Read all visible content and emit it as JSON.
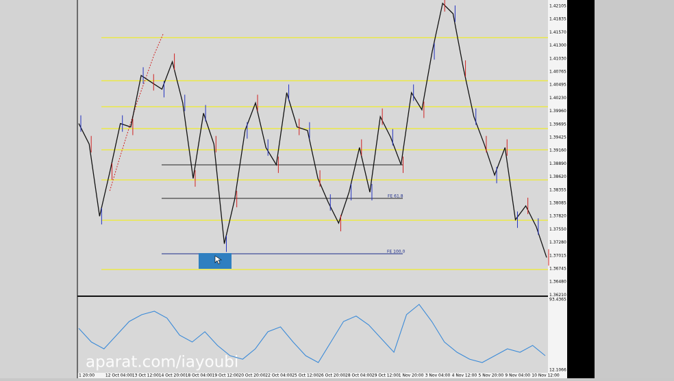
{
  "price_axis": {
    "labels": [
      "1.42105",
      "1.41835",
      "1.41570",
      "1.41300",
      "1.41030",
      "1.40765",
      "1.40495",
      "1.40230",
      "1.39960",
      "1.39695",
      "1.39425",
      "1.39160",
      "1.38890",
      "1.38620",
      "1.38355",
      "1.38085",
      "1.37820",
      "1.37550",
      "1.37280",
      "1.37015",
      "1.36745",
      "1.36480",
      "1.36210"
    ]
  },
  "time_axis": {
    "labels": [
      "1 20:00",
      "12 Oct 04:00",
      "13 Oct 12:00",
      "14 Oct 20:00",
      "18 Oct 04:00",
      "19 Oct 12:00",
      "20 Oct 20:00",
      "22 Oct 04:00",
      "25 Oct 12:00",
      "26 Oct 20:00",
      "28 Oct 04:00",
      "29 Oct 12:00",
      "1 Nov 20:00",
      "3 Nov 04:00",
      "4 Nov 12:00",
      "5 Nov 20:00",
      "9 Nov 04:00",
      "10 Nov 12:00"
    ]
  },
  "price_line": {
    "ylim": [
      1.3618,
      1.4223
    ],
    "values": [
      1.39701,
      1.39279,
      1.37803,
      1.38717,
      1.39701,
      1.39631,
      1.40685,
      1.40544,
      1.40404,
      1.40966,
      1.40123,
      1.38576,
      1.39912,
      1.39279,
      1.3724,
      1.38154,
      1.3956,
      1.40123,
      1.39209,
      1.38857,
      1.40333,
      1.39631,
      1.3956,
      1.38576,
      1.38084,
      1.37662,
      1.38295,
      1.39209,
      1.38295,
      1.39841,
      1.3942,
      1.38857,
      1.40333,
      1.39982,
      1.41177,
      1.42161,
      1.4195,
      1.40826,
      1.39841,
      1.39279,
      1.38646,
      1.39209,
      1.37732,
      1.38014,
      1.37592,
      1.36959
    ]
  },
  "oscillator": {
    "ylim": [
      12.1066,
      93.4365
    ],
    "values": [
      60.3,
      44.5,
      36.6,
      52.4,
      68.2,
      76.1,
      80.0,
      72.1,
      52.4,
      44.5,
      56.3,
      40.5,
      28.7,
      24.7,
      36.6,
      56.3,
      61.9,
      44.5,
      28.7,
      20.8,
      44.5,
      68.2,
      74.5,
      64.2,
      48.4,
      32.6,
      76.1,
      87.9,
      68.2,
      44.5,
      32.6,
      24.7,
      20.8,
      28.7,
      36.6,
      32.6,
      40.5,
      28.7
    ]
  },
  "annotations": {
    "fe_61": "FE 61.8",
    "fe_100": "FE 100.0"
  },
  "watermark": "aparat.com/iayoubi"
}
